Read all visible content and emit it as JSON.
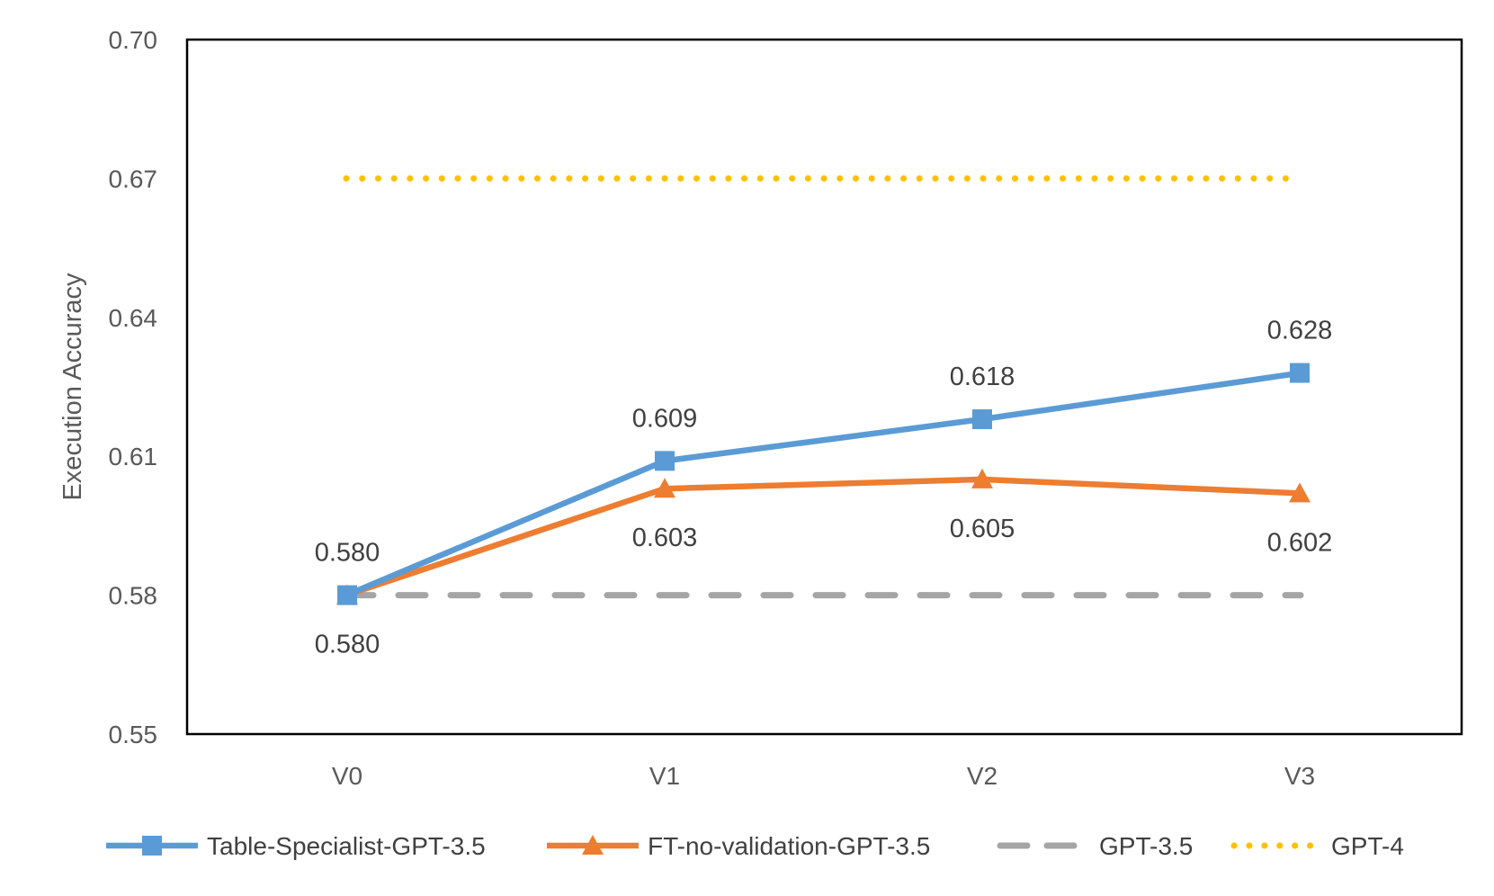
{
  "chart_data": {
    "type": "line",
    "title": "",
    "xlabel": "",
    "ylabel": "Execution Accuracy",
    "categories": [
      "V0",
      "V1",
      "V2",
      "V3"
    ],
    "ylim": [
      0.55,
      0.7
    ],
    "yticks": [
      "0.55",
      "0.58",
      "0.61",
      "0.64",
      "0.67",
      "0.70"
    ],
    "grid": false,
    "legend_position": "bottom",
    "series": [
      {
        "name": "Table-Specialist-GPT-3.5",
        "values": [
          0.58,
          0.609,
          0.618,
          0.628
        ],
        "labels": [
          "0.580",
          "0.609",
          "0.618",
          "0.628"
        ],
        "color": "#5B9BD5",
        "marker": "square",
        "style": "solid"
      },
      {
        "name": "FT-no-validation-GPT-3.5",
        "values": [
          0.58,
          0.603,
          0.605,
          0.602
        ],
        "labels": [
          "0.580",
          "0.603",
          "0.605",
          "0.602"
        ],
        "color": "#ED7D31",
        "marker": "triangle",
        "style": "solid"
      },
      {
        "name": "GPT-3.5",
        "values": [
          0.58,
          0.58,
          0.58,
          0.58
        ],
        "color": "#A5A5A5",
        "marker": "none",
        "style": "dashed"
      },
      {
        "name": "GPT-4",
        "values": [
          0.67,
          0.67,
          0.67,
          0.67
        ],
        "color": "#FFC000",
        "marker": "none",
        "style": "dotted"
      }
    ]
  }
}
